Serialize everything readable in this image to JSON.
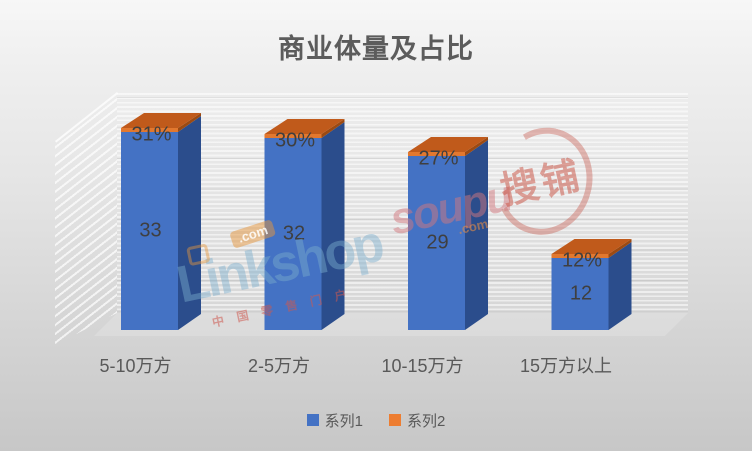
{
  "title": "商业体量及占比",
  "chart_data": {
    "type": "bar",
    "variant": "3d-stacked-column",
    "title": "商业体量及占比",
    "categories": [
      "5-10万方",
      "2-5万方",
      "10-15万方",
      "15万方以上"
    ],
    "series": [
      {
        "name": "系列1",
        "color": "#4472C4",
        "values": [
          33,
          32,
          29,
          12
        ]
      },
      {
        "name": "系列2",
        "color": "#ED7D31",
        "values": [
          31,
          30,
          27,
          12
        ],
        "unit": "%"
      }
    ],
    "data_labels": {
      "series1": [
        "33",
        "32",
        "29",
        "12"
      ],
      "series2": [
        "31%",
        "30%",
        "27%",
        "12%"
      ]
    },
    "legend_position": "bottom",
    "axes": {
      "y_axis_visible": false,
      "x_axis_visible": true
    },
    "bar_colors": {
      "front": "#4472C4",
      "side": "#2B4D8C",
      "cap_top": "#C05A1B",
      "cap_front": "#E2782F",
      "cap_side": "#9C4A12"
    }
  },
  "watermarks": {
    "linkshop": {
      "name": "Linkshop",
      "dotcom": ".com",
      "slogan": "中国零售门户"
    },
    "soupu": {
      "name": "soupu",
      "dotcom": ".com",
      "stamp": "搜铺"
    }
  }
}
